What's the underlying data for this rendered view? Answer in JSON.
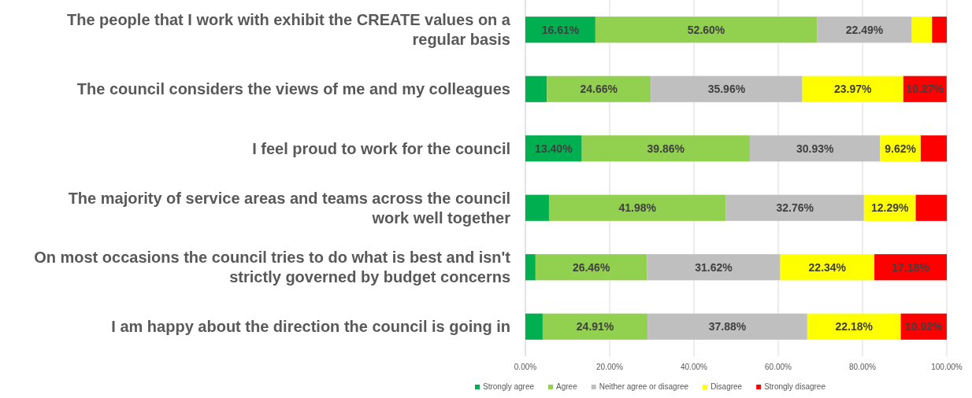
{
  "chart_data": {
    "type": "bar",
    "orientation": "horizontal",
    "stacked": true,
    "categories": [
      "The people that I work with exhibit the CREATE values on a regular basis",
      "The council considers the views of me and my colleagues",
      "I feel proud to work for the council",
      "The majority of service areas and teams across the council work well together",
      "On most occasions the council tries to do what is best and isn't strictly governed by budget concerns",
      "I am happy about the direction the council is going in"
    ],
    "series": [
      {
        "name": "Strongly agree",
        "color": "#00b050",
        "values": [
          16.61,
          5.1,
          13.4,
          5.6,
          2.4,
          4.1
        ],
        "value_labels": [
          "16.61%",
          null,
          "13.40%",
          null,
          null,
          null
        ]
      },
      {
        "name": "Agree",
        "color": "#92d050",
        "values": [
          52.6,
          24.66,
          39.86,
          41.98,
          26.46,
          24.91
        ],
        "value_labels": [
          "52.60%",
          "24.66%",
          "39.86%",
          "41.98%",
          "26.46%",
          "24.91%"
        ]
      },
      {
        "name": "Neither agree or disagree",
        "color": "#bfbfbf",
        "values": [
          22.49,
          35.96,
          30.93,
          32.76,
          31.62,
          37.88
        ],
        "value_labels": [
          "22.49%",
          "35.96%",
          "30.93%",
          "32.76%",
          "31.62%",
          "37.88%"
        ]
      },
      {
        "name": "Disagree",
        "color": "#ffff00",
        "values": [
          4.8,
          23.97,
          9.62,
          12.29,
          22.34,
          22.18
        ],
        "value_labels": [
          null,
          "23.97%",
          "9.62%",
          "12.29%",
          "22.34%",
          "22.18%"
        ]
      },
      {
        "name": "Strongly disagree",
        "color": "#ff0000",
        "values": [
          3.5,
          10.27,
          6.2,
          7.4,
          17.18,
          10.92
        ],
        "value_labels": [
          null,
          "10.27%",
          null,
          null,
          "17.18%",
          "10.92%"
        ]
      }
    ],
    "xlim": [
      0,
      100
    ],
    "xticks": [
      {
        "value": 0,
        "label": "0.00%"
      },
      {
        "value": 20,
        "label": "20.00%"
      },
      {
        "value": 40,
        "label": "40.00%"
      },
      {
        "value": 60,
        "label": "60.00%"
      },
      {
        "value": 80,
        "label": "80.00%"
      },
      {
        "value": 100,
        "label": "100.00%"
      }
    ],
    "grid": "x",
    "legend": "bottom"
  }
}
